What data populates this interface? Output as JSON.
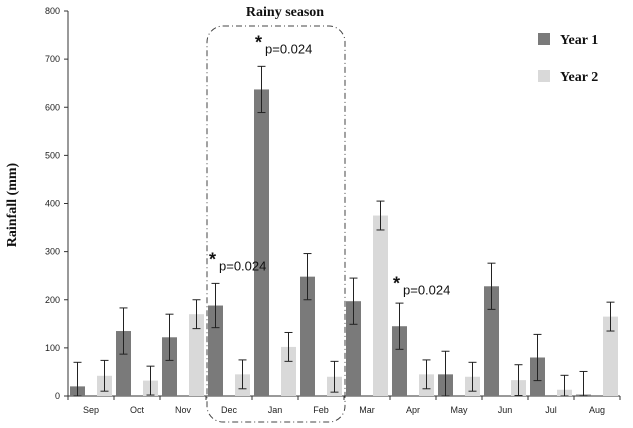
{
  "chart_data": {
    "type": "bar",
    "title": "",
    "xlabel": "",
    "ylabel": "Rainfall  (mm)",
    "ylim": [
      0,
      800
    ],
    "yticks": [
      0,
      100,
      200,
      300,
      400,
      500,
      600,
      700,
      800
    ],
    "grid": false,
    "legend_position": "top-right",
    "categories": [
      "Sep",
      "Oct",
      "Nov",
      "Dec",
      "Jan",
      "Feb",
      "Mar",
      "Apr",
      "May",
      "Jun",
      "Jul",
      "Aug"
    ],
    "series": [
      {
        "name": "Year 1",
        "color": "#7a7a7a",
        "values": [
          20,
          135,
          122,
          188,
          637,
          248,
          197,
          145,
          45,
          228,
          80,
          3
        ],
        "errors": [
          50,
          48,
          48,
          46,
          48,
          48,
          48,
          48,
          48,
          48,
          48,
          48
        ]
      },
      {
        "name": "Year 2",
        "color": "#d9d9d9",
        "values": [
          42,
          32,
          170,
          45,
          102,
          40,
          375,
          45,
          40,
          33,
          13,
          165
        ],
        "errors": [
          32,
          30,
          30,
          30,
          30,
          32,
          30,
          30,
          30,
          32,
          30,
          30
        ]
      }
    ],
    "highlight_box": {
      "label": "Rainy season",
      "categories": [
        "Dec",
        "Jan",
        "Feb"
      ]
    },
    "annotations": [
      {
        "category": "Dec",
        "star": "*",
        "text": "p=0.024",
        "y": 280
      },
      {
        "category": "Jan",
        "star": "*",
        "text": "p=0.024",
        "y": 730
      },
      {
        "category": "Apr",
        "star": "*",
        "text": "p=0.024",
        "y": 230
      }
    ]
  }
}
